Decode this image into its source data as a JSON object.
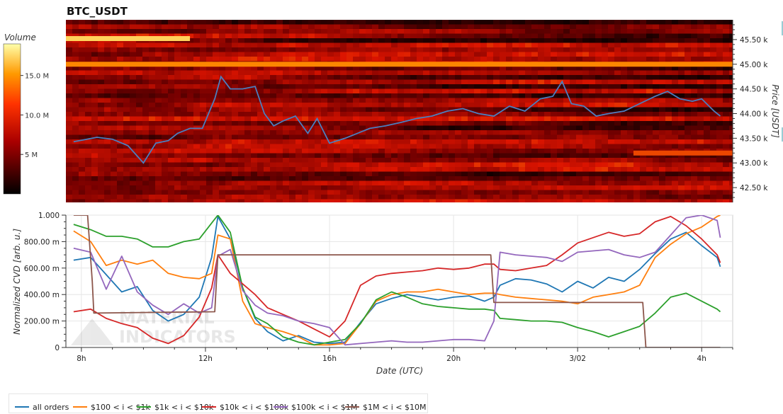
{
  "colors": {
    "price_line": "#4a7fc0",
    "all_orders": "#1f77b4",
    "r100_1k": "#ff7f0e",
    "r1k_10k": "#2ca02c",
    "r10k_100k": "#d62728",
    "r100k_1m": "#9467bd",
    "r1m_10m": "#8c564b",
    "heatmap_low": "#000000",
    "heatmap_mid": "#cc1100",
    "heatmap_high": "#ffff80"
  },
  "chart_data": [
    {
      "type": "heatmap",
      "title": "BTC_USDT",
      "ylabel": "Price [USDT]",
      "colorbar_label": "Volume",
      "colorbar_ticks": [
        "15.0 M",
        "10.0 M",
        "5 M"
      ],
      "colorbar_values": [
        15000000,
        10000000,
        5000000
      ],
      "colorbar_range": [
        0,
        19000000
      ],
      "ylim": [
        42200,
        45900
      ],
      "y_ticks": [
        42500,
        43000,
        43500,
        44000,
        44500,
        45000,
        45500
      ],
      "y_tick_labels": [
        "42.50 k",
        "43.00 k",
        "43.50 k",
        "44.00 k",
        "44.50 k",
        "45.00 k",
        "45.50 k"
      ],
      "xlim": [
        7.5,
        29.0
      ],
      "price_line": {
        "x": [
          7.75,
          8.1,
          8.5,
          9.0,
          9.5,
          10.0,
          10.4,
          10.8,
          11.1,
          11.5,
          11.9,
          12.1,
          12.3,
          12.5,
          12.8,
          13.2,
          13.6,
          13.9,
          14.2,
          14.5,
          14.9,
          15.3,
          15.6,
          16.0,
          16.5,
          16.9,
          17.3,
          17.8,
          18.3,
          18.8,
          19.3,
          19.8,
          20.3,
          20.8,
          21.3,
          21.8,
          22.3,
          22.8,
          23.2,
          23.5,
          23.8,
          24.2,
          24.6,
          25.0,
          25.5,
          26.0,
          26.5,
          26.9,
          27.3,
          27.7,
          28.0,
          28.4,
          28.6
        ],
        "y": [
          43.43,
          43.47,
          43.52,
          43.48,
          43.35,
          43.0,
          43.4,
          43.45,
          43.6,
          43.7,
          43.7,
          44.0,
          44.3,
          44.75,
          44.5,
          44.5,
          44.55,
          44.0,
          43.75,
          43.85,
          43.95,
          43.6,
          43.9,
          43.4,
          43.5,
          43.6,
          43.7,
          43.75,
          43.82,
          43.9,
          43.95,
          44.05,
          44.1,
          44.0,
          43.95,
          44.15,
          44.05,
          44.3,
          44.35,
          44.65,
          44.2,
          44.15,
          43.95,
          44.0,
          44.05,
          44.2,
          44.35,
          44.45,
          44.3,
          44.25,
          44.3,
          44.05,
          43.95
        ]
      },
      "intense_bands": [
        {
          "price": 45520,
          "x": [
            7.5,
            11.5
          ],
          "volume": 17500000
        },
        {
          "price": 45000,
          "x": [
            7.5,
            29.0
          ],
          "volume": 15000000
        },
        {
          "price": 43200,
          "x": [
            25.8,
            29.0
          ],
          "volume": 13000000
        }
      ]
    },
    {
      "type": "line",
      "xlabel": "Date (UTC)",
      "ylabel": "Normalized CVD [arb. u.]",
      "ylim": [
        0,
        1000
      ],
      "y_ticks": [
        0,
        200,
        400,
        600,
        800,
        1000
      ],
      "y_tick_labels": [
        "0",
        "200.00 m",
        "400.00 m",
        "600.00 m",
        "800.00 m",
        "1.000"
      ],
      "xlim": [
        7.5,
        29.0
      ],
      "x_ticks": [
        8,
        12,
        16,
        20,
        24,
        28
      ],
      "x_tick_labels": [
        "8h",
        "12h",
        "16h",
        "20h",
        "3/02",
        "4h"
      ],
      "grid": true,
      "legend_position": "bottom",
      "watermark": "MATERIAL INDICATORS",
      "series": [
        {
          "name": "all orders",
          "color_key": "all_orders",
          "x": [
            7.75,
            8.3,
            8.8,
            9.3,
            9.8,
            10.3,
            10.8,
            11.3,
            11.8,
            12.2,
            12.4,
            12.8,
            13.2,
            13.6,
            14.0,
            14.5,
            15.0,
            15.5,
            16.0,
            16.5,
            17.0,
            17.5,
            18.0,
            18.5,
            19.0,
            19.5,
            20.0,
            20.5,
            21.0,
            21.3,
            21.5,
            22.0,
            22.5,
            23.0,
            23.5,
            24.0,
            24.5,
            25.0,
            25.5,
            26.0,
            26.5,
            27.0,
            27.5,
            28.0,
            28.5,
            28.6
          ],
          "y": [
            660,
            680,
            550,
            420,
            460,
            280,
            200,
            250,
            380,
            680,
            990,
            820,
            450,
            220,
            120,
            50,
            90,
            40,
            30,
            40,
            190,
            330,
            370,
            400,
            380,
            360,
            380,
            390,
            350,
            380,
            470,
            520,
            510,
            480,
            420,
            500,
            450,
            530,
            500,
            590,
            710,
            820,
            870,
            770,
            680,
            610
          ]
        },
        {
          "name": "$100 < i < $1k",
          "color_key": "r100_1k",
          "x": [
            7.75,
            8.3,
            8.8,
            9.3,
            9.8,
            10.3,
            10.8,
            11.3,
            11.8,
            12.2,
            12.4,
            12.8,
            13.2,
            13.6,
            14.0,
            14.5,
            15.0,
            15.5,
            16.0,
            16.5,
            17.0,
            17.5,
            18.0,
            18.5,
            19.0,
            19.5,
            20.0,
            20.5,
            21.0,
            21.3,
            21.5,
            22.0,
            22.5,
            23.0,
            23.5,
            24.0,
            24.5,
            25.0,
            25.5,
            26.0,
            26.5,
            27.0,
            27.5,
            28.0,
            28.5,
            28.6
          ],
          "y": [
            880,
            800,
            620,
            660,
            630,
            660,
            560,
            530,
            520,
            560,
            850,
            820,
            350,
            180,
            150,
            120,
            80,
            20,
            20,
            30,
            180,
            350,
            400,
            420,
            420,
            440,
            420,
            400,
            410,
            410,
            400,
            380,
            370,
            360,
            350,
            330,
            380,
            400,
            420,
            470,
            680,
            780,
            860,
            910,
            990,
            1000
          ]
        },
        {
          "name": "$1k < i < $10k",
          "color_key": "r1k_10k",
          "x": [
            7.75,
            8.3,
            8.8,
            9.3,
            9.8,
            10.3,
            10.8,
            11.3,
            11.8,
            12.2,
            12.4,
            12.8,
            13.2,
            13.6,
            14.0,
            14.5,
            15.0,
            15.5,
            16.0,
            16.5,
            17.0,
            17.5,
            18.0,
            18.5,
            19.0,
            19.5,
            20.0,
            20.5,
            21.0,
            21.3,
            21.5,
            22.0,
            22.5,
            23.0,
            23.5,
            24.0,
            24.5,
            25.0,
            25.5,
            26.0,
            26.5,
            27.0,
            27.5,
            28.0,
            28.5,
            28.6
          ],
          "y": [
            930,
            890,
            840,
            840,
            820,
            760,
            760,
            800,
            820,
            940,
            1000,
            870,
            450,
            230,
            180,
            80,
            40,
            20,
            40,
            60,
            180,
            360,
            420,
            380,
            330,
            310,
            300,
            290,
            290,
            280,
            220,
            210,
            200,
            200,
            190,
            150,
            120,
            80,
            120,
            160,
            260,
            380,
            410,
            350,
            290,
            270
          ]
        },
        {
          "name": "$10k < i < $100k",
          "color_key": "r10k_100k",
          "x": [
            7.75,
            8.3,
            8.8,
            9.3,
            9.8,
            10.3,
            10.8,
            11.3,
            11.8,
            12.2,
            12.4,
            12.8,
            13.2,
            13.6,
            14.0,
            14.5,
            15.0,
            15.5,
            16.0,
            16.5,
            17.0,
            17.5,
            18.0,
            18.5,
            19.0,
            19.5,
            20.0,
            20.5,
            21.0,
            21.3,
            21.5,
            22.0,
            22.5,
            23.0,
            23.5,
            24.0,
            24.5,
            25.0,
            25.5,
            26.0,
            26.5,
            27.0,
            27.5,
            28.0,
            28.5,
            28.6
          ],
          "y": [
            270,
            290,
            220,
            180,
            150,
            70,
            30,
            90,
            230,
            450,
            700,
            560,
            480,
            400,
            300,
            250,
            200,
            140,
            80,
            200,
            470,
            540,
            560,
            570,
            580,
            600,
            590,
            600,
            630,
            630,
            590,
            580,
            600,
            620,
            700,
            790,
            830,
            870,
            840,
            860,
            950,
            990,
            920,
            820,
            700,
            640
          ]
        },
        {
          "name": "$100k < i < $1M",
          "color_key": "r100k_1m",
          "x": [
            7.75,
            8.3,
            8.8,
            9.3,
            9.8,
            10.3,
            10.8,
            11.3,
            11.8,
            12.2,
            12.4,
            12.8,
            13.2,
            13.6,
            14.0,
            14.5,
            15.0,
            15.5,
            16.0,
            16.5,
            17.0,
            17.5,
            18.0,
            18.5,
            19.0,
            19.5,
            20.0,
            20.5,
            21.0,
            21.3,
            21.5,
            22.0,
            22.5,
            23.0,
            23.5,
            24.0,
            24.5,
            25.0,
            25.5,
            26.0,
            26.5,
            27.0,
            27.5,
            28.0,
            28.5,
            28.6
          ],
          "y": [
            750,
            720,
            440,
            690,
            420,
            320,
            250,
            330,
            260,
            300,
            690,
            740,
            430,
            320,
            260,
            240,
            200,
            180,
            150,
            20,
            30,
            40,
            50,
            40,
            40,
            50,
            60,
            60,
            50,
            200,
            720,
            700,
            690,
            680,
            650,
            720,
            730,
            740,
            700,
            680,
            720,
            850,
            980,
            1000,
            960,
            830
          ]
        },
        {
          "name": "$1M < i < $10M",
          "color_key": "r1m_10m",
          "x": [
            7.75,
            8.2,
            8.35,
            8.4,
            12.3,
            12.4,
            21.2,
            21.3,
            26.1,
            26.2,
            28.6
          ],
          "y": [
            1000,
            1000,
            500,
            260,
            270,
            700,
            700,
            340,
            340,
            0,
            0
          ]
        }
      ]
    }
  ],
  "legend": {
    "items": [
      "all orders",
      "$100 < i < $1k",
      "$1k < i < $10k",
      "$10k < i < $100k",
      "$100k < i < $1M",
      "$1M < i < $10M"
    ]
  }
}
